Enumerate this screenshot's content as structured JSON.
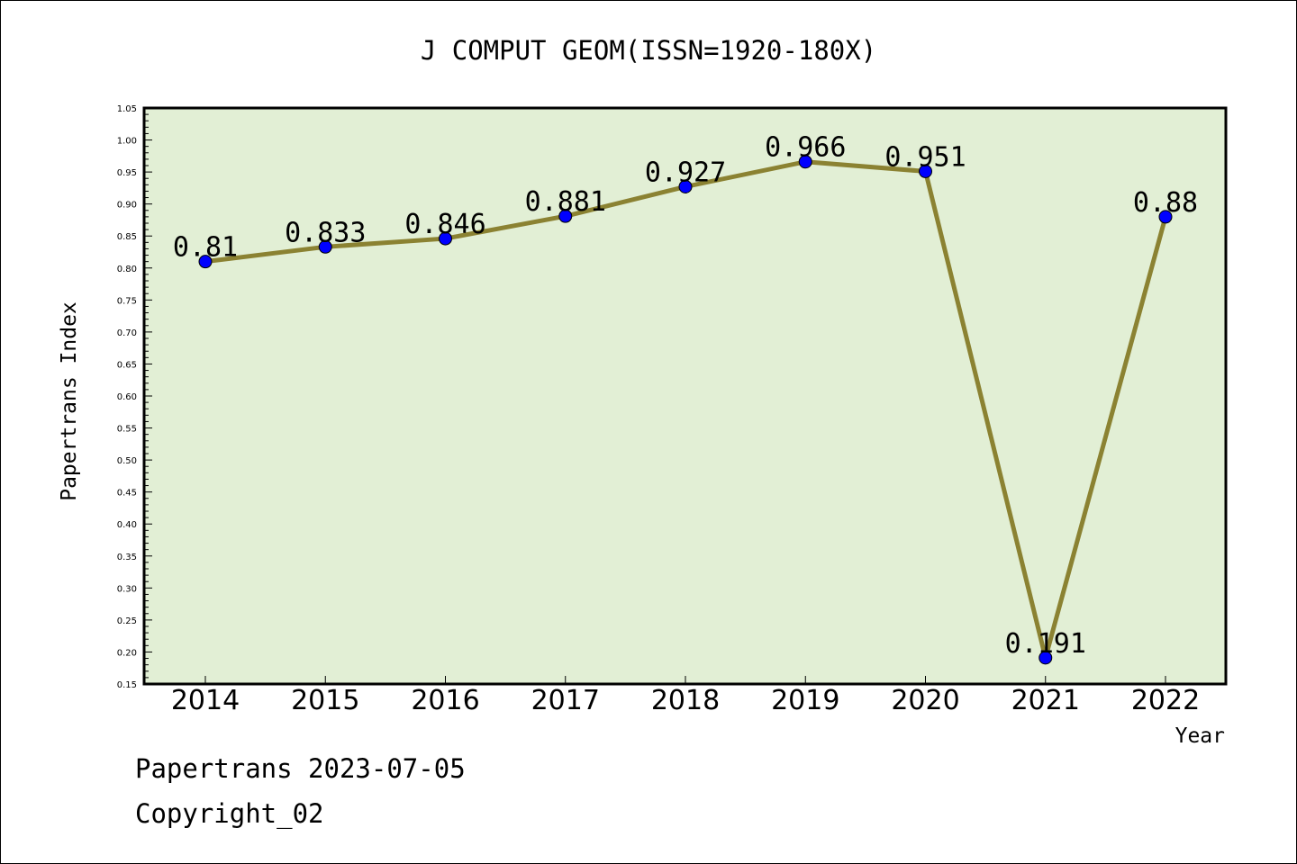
{
  "chart_data": {
    "type": "line",
    "title": "J COMPUT GEOM(ISSN=1920-180X)",
    "xlabel": "Year",
    "ylabel": "Papertrans Index",
    "categories": [
      "2014",
      "2015",
      "2016",
      "2017",
      "2018",
      "2019",
      "2020",
      "2021",
      "2022"
    ],
    "values": [
      0.81,
      0.833,
      0.846,
      0.881,
      0.927,
      0.966,
      0.951,
      0.191,
      0.88
    ],
    "data_labels": [
      "0.81",
      "0.833",
      "0.846",
      "0.881",
      "0.927",
      "0.966",
      "0.951",
      "0.191",
      "0.88"
    ],
    "ylim": [
      0.15,
      1.05
    ],
    "yticks": [
      "0.15",
      "0.20",
      "0.25",
      "0.30",
      "0.35",
      "0.40",
      "0.45",
      "0.50",
      "0.55",
      "0.60",
      "0.65",
      "0.70",
      "0.75",
      "0.80",
      "0.85",
      "0.90",
      "0.95",
      "1.00",
      "1.05"
    ],
    "grid": false,
    "legend": "none",
    "colors": {
      "plot_background": "#e2efd5",
      "line": "#8b8232",
      "marker": "#0000ff",
      "axis": "#000000"
    }
  },
  "footer": {
    "line1": "Papertrans 2023-07-05",
    "line2": "Copyright_02"
  }
}
